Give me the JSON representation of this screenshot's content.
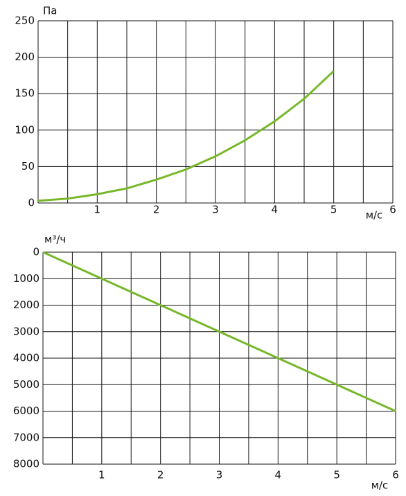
{
  "chart_data": [
    {
      "type": "line",
      "y_label": "Па",
      "x_label": "м/с",
      "x": [
        0,
        0.5,
        1,
        1.5,
        2,
        2.5,
        3,
        3.5,
        4,
        4.5,
        5
      ],
      "series": [
        {
          "color": "#77b82a",
          "values": [
            3,
            6,
            12,
            20,
            32,
            46,
            64,
            86,
            112,
            143,
            181
          ]
        }
      ],
      "xlim": [
        0,
        6
      ],
      "xticks": [
        1,
        2,
        3,
        4,
        5,
        6
      ],
      "xgrid": [
        0.5,
        1,
        1.5,
        2,
        2.5,
        3,
        3.5,
        4,
        4.5,
        5,
        5.5,
        6
      ],
      "ylim": [
        0,
        250
      ],
      "yticks": [
        0,
        50,
        100,
        150,
        200,
        250
      ],
      "grid": true,
      "invert_y": false
    },
    {
      "type": "line",
      "y_label": "м³/ч",
      "x_label": "м/с",
      "x": [
        0,
        1,
        2,
        3,
        4,
        5,
        6
      ],
      "series": [
        {
          "color": "#77b82a",
          "values": [
            0,
            1000,
            2000,
            3000,
            4000,
            5000,
            6000
          ]
        }
      ],
      "xlim": [
        0,
        6
      ],
      "xticks": [
        1,
        2,
        3,
        4,
        5,
        6
      ],
      "xgrid": [
        0.5,
        1,
        1.5,
        2,
        2.5,
        3,
        3.5,
        4,
        4.5,
        5,
        5.5,
        6
      ],
      "ylim": [
        0,
        8000
      ],
      "yticks": [
        0,
        1000,
        2000,
        3000,
        4000,
        5000,
        6000,
        7000,
        8000
      ],
      "grid": true,
      "invert_y": true
    }
  ]
}
